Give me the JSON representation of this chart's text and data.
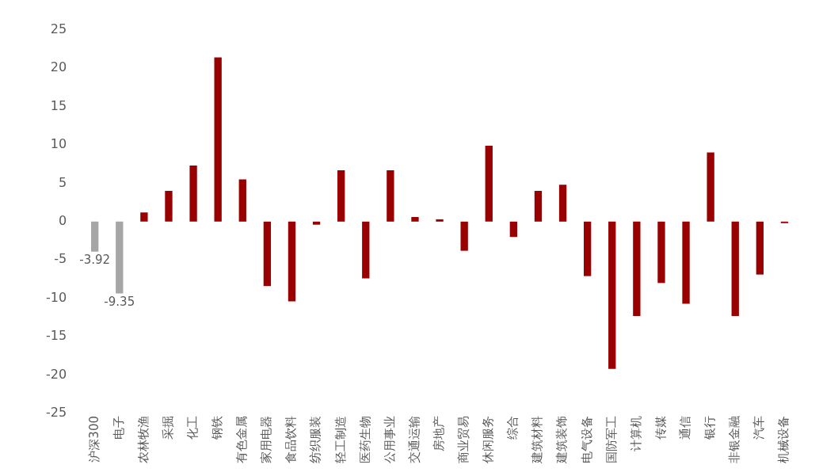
{
  "chart_data": {
    "type": "bar",
    "categories": [
      "沪深300",
      "电子",
      "农林牧渔",
      "采掘",
      "化工",
      "钢铁",
      "有色金属",
      "家用电器",
      "食品饮料",
      "纺织服装",
      "轻工制造",
      "医药生物",
      "公用事业",
      "交通运输",
      "房地产",
      "商业贸易",
      "休闲服务",
      "综合",
      "建筑材料",
      "建筑装饰",
      "电气设备",
      "国防军工",
      "计算机",
      "传媒",
      "通信",
      "银行",
      "非银金融",
      "汽车",
      "机械设备"
    ],
    "values": [
      -3.92,
      -9.35,
      1.2,
      4.0,
      7.3,
      21.4,
      5.5,
      -8.4,
      -10.4,
      -0.4,
      6.7,
      -7.4,
      6.7,
      0.6,
      0.3,
      -3.8,
      9.9,
      -2.0,
      4.0,
      4.8,
      -7.1,
      -19.2,
      -12.3,
      -8.0,
      -10.7,
      9.0,
      -12.3,
      -6.9,
      -0.2
    ],
    "colors": [
      "#a6a6a6",
      "#a6a6a6",
      "#990000",
      "#990000",
      "#990000",
      "#990000",
      "#990000",
      "#990000",
      "#990000",
      "#990000",
      "#990000",
      "#990000",
      "#990000",
      "#990000",
      "#990000",
      "#990000",
      "#990000",
      "#990000",
      "#990000",
      "#990000",
      "#990000",
      "#990000",
      "#990000",
      "#990000",
      "#990000",
      "#990000",
      "#990000",
      "#990000",
      "#990000"
    ],
    "value_labels": [
      "-3.92",
      "-9.35",
      null,
      null,
      null,
      null,
      null,
      null,
      null,
      null,
      null,
      null,
      null,
      null,
      null,
      null,
      null,
      null,
      null,
      null,
      null,
      null,
      null,
      null,
      null,
      null,
      null,
      null,
      null
    ],
    "ylim": [
      -25,
      25
    ],
    "yticks": [
      -25,
      -20,
      -15,
      -10,
      -5,
      0,
      5,
      10,
      15,
      20,
      25
    ],
    "grid": false,
    "legend": false
  }
}
